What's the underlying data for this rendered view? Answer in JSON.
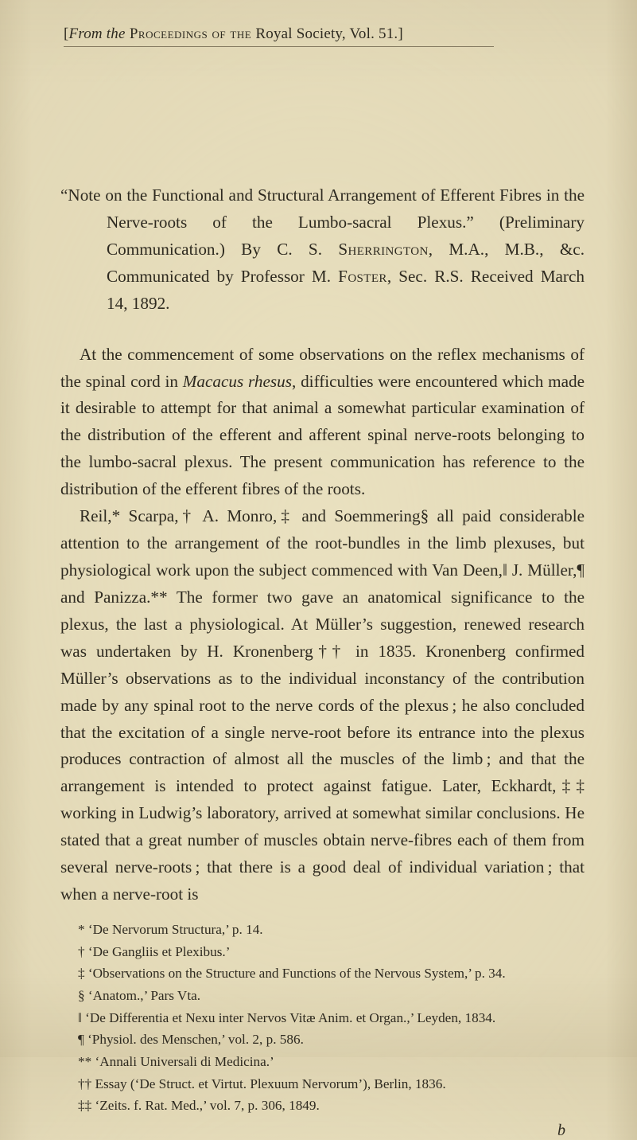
{
  "runningHead": {
    "prefix": "[",
    "fromItalic": "From the",
    "procSC": " Proceedings of the ",
    "royalText": "Royal Society, Vol. 51.]"
  },
  "title": {
    "line": "“Note on the Functional and Structural Arrangement of Efferent Fibres in the Nerve-roots of the Lumbo-sacral Plexus.” (Preliminary Communication.) By C. S. ",
    "sherringtonSC": "Sherrington",
    "mid": ", M.A., M.B., &c. Communicated by Professor M. ",
    "fosterSC": "Foster",
    "tail": ", Sec. R.S. Received March 14, 1892."
  },
  "para1": {
    "text": "At the commencement of some observations on the reflex mechanisms of the spinal cord in ",
    "italic1": "Macacus rhesus",
    "text2": ", difficulties were encountered which made it desirable to attempt for that animal a somewhat particular examination of the distribution of the efferent and afferent spinal nerve-roots belonging to the lumbo-sacral plexus. The present communication has reference to the distribution of the efferent fibres of the roots."
  },
  "para2": {
    "text": "Reil,* Scarpa,† A. Monro,‡ and Soemmering§ all paid considerable attention to the arrangement of the root-bundles in the limb plexuses, but physiological work upon the subject commenced with Van Deen,‖ J. Müller,¶ and Panizza.** The former two gave an anatomical significance to the plexus, the last a physiological. At Müller’s suggestion, renewed research was undertaken by H. Kronenberg†† in 1835. Kronenberg confirmed Müller’s observations as to the individual inconstancy of the contribution made by any spinal root to the nerve cords of the plexus ; he also concluded that the excitation of a single nerve-root before its entrance into the plexus produces contraction of almost all the muscles of the limb ; and that the arrangement is intended to protect against fatigue. Later, Eckhardt,‡‡ working in Ludwig’s laboratory, arrived at somewhat similar conclusions. He stated that a great number of muscles obtain nerve-fibres each of them from several nerve-roots ; that there is a good deal of individual variation ; that when a nerve-root is"
  },
  "footnotes": {
    "f1": "* ‘De Nervorum Structura,’ p. 14.",
    "f2": "† ‘De Gangliis et Plexibus.’",
    "f3": "‡ ‘Observations on the Structure and Functions of the Nervous System,’ p. 34.",
    "f4": "§ ‘Anatom.,’ Pars Vta.",
    "f5": "‖ ‘De Differentia et Nexu inter Nervos Vitæ Anim. et Organ.,’ Leyden, 1834.",
    "f6": "¶ ‘Physiol. des Menschen,’ vol. 2, p. 586.",
    "f7": "** ‘Annali Universali di Medicina.’",
    "f8": "†† Essay (‘De Struct. et Virtut. Plexuum Nervorum’), Berlin, 1836.",
    "f9": "‡‡ ‘Zeits. f. Rat. Med.,’ vol. 7, p. 306, 1849."
  },
  "signature": "b"
}
